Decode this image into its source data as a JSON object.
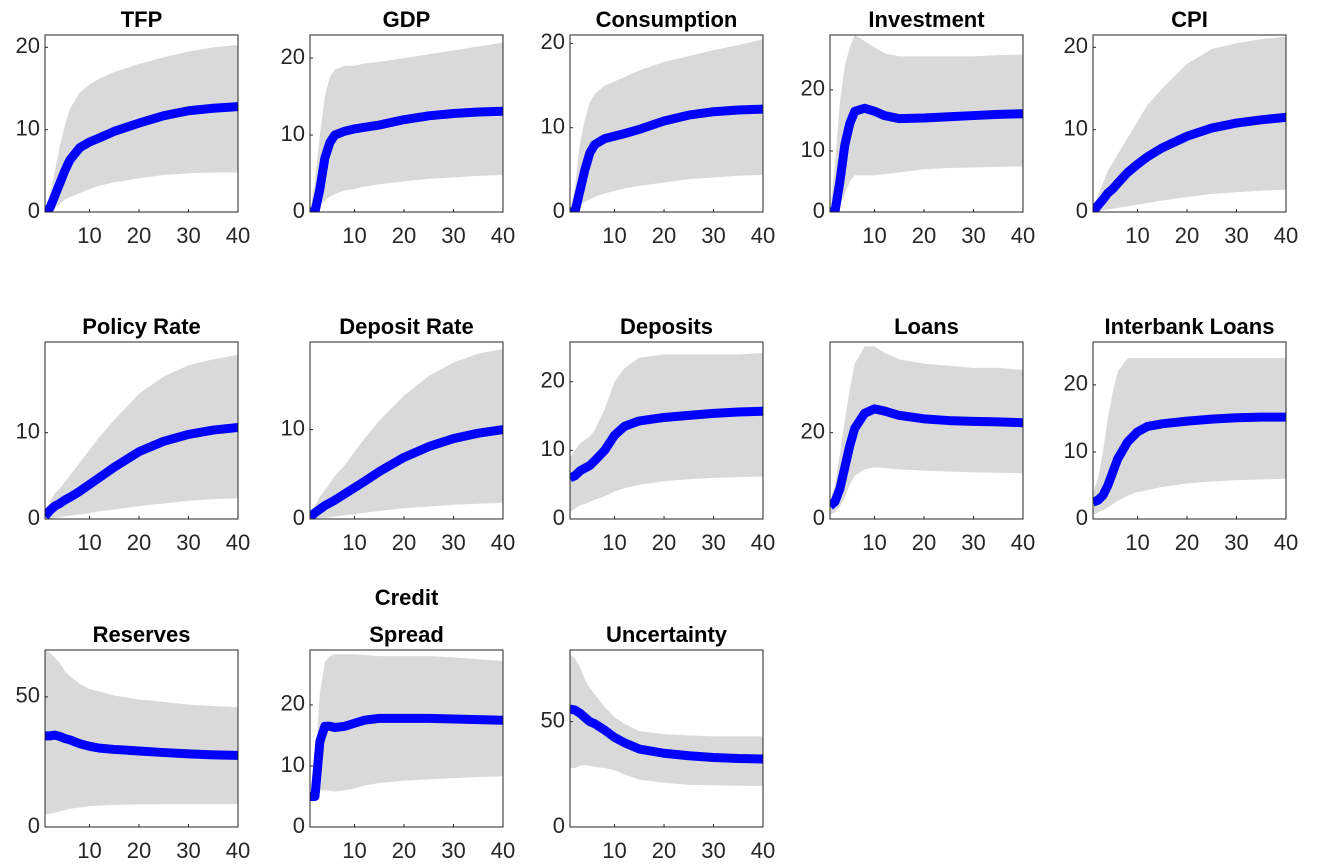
{
  "chart_data": [
    {
      "type": "line",
      "title": "TFP",
      "x": [
        1,
        2,
        3,
        4,
        5,
        6,
        8,
        10,
        12,
        15,
        20,
        25,
        30,
        35,
        40
      ],
      "values": [
        0,
        0.5,
        2,
        3.5,
        5,
        6.3,
        7.8,
        8.5,
        9,
        9.8,
        10.8,
        11.7,
        12.3,
        12.6,
        12.8
      ],
      "band": {
        "upper": [
          0,
          2,
          5,
          8,
          10.5,
          12.5,
          14.5,
          15.5,
          16.2,
          17,
          18,
          18.8,
          19.5,
          20,
          20.3
        ],
        "lower": [
          0,
          0.2,
          0.5,
          1,
          1.5,
          1.8,
          2.3,
          2.8,
          3.2,
          3.6,
          4.1,
          4.5,
          4.7,
          4.8,
          4.8
        ],
        "color": "#d9d9d9"
      },
      "color": "#0000ff",
      "xlim": [
        1,
        40
      ],
      "ylim": [
        0,
        21.5
      ],
      "xticks": [
        10,
        20,
        30,
        40
      ],
      "yticks": [
        0,
        10,
        20
      ]
    },
    {
      "type": "line",
      "title": "GDP",
      "x": [
        1,
        2,
        3,
        4,
        5,
        6,
        8,
        10,
        12,
        15,
        20,
        25,
        30,
        35,
        40
      ],
      "values": [
        0,
        0,
        3,
        7,
        9,
        10,
        10.5,
        10.8,
        11,
        11.3,
        12,
        12.5,
        12.8,
        13,
        13.1
      ],
      "band": {
        "upper": [
          0,
          4,
          10,
          15,
          17.5,
          18.5,
          19,
          19,
          19.3,
          19.5,
          20,
          20.5,
          21,
          21.5,
          22
        ],
        "lower": [
          0,
          0.5,
          1,
          1.5,
          2,
          2.3,
          2.8,
          3,
          3.3,
          3.6,
          4,
          4.3,
          4.5,
          4.7,
          4.8
        ],
        "color": "#d9d9d9"
      },
      "color": "#0000ff",
      "xlim": [
        1,
        40
      ],
      "ylim": [
        0,
        23
      ],
      "xticks": [
        10,
        20,
        30,
        40
      ],
      "yticks": [
        0,
        10,
        20
      ]
    },
    {
      "type": "line",
      "title": "Consumption",
      "x": [
        1,
        2,
        3,
        4,
        5,
        6,
        8,
        10,
        12,
        15,
        20,
        25,
        30,
        35,
        40
      ],
      "values": [
        0,
        0,
        2.5,
        5,
        7,
        8,
        8.7,
        9,
        9.3,
        9.8,
        10.8,
        11.5,
        11.9,
        12.1,
        12.2
      ],
      "band": {
        "upper": [
          0,
          3,
          8,
          11,
          13,
          14,
          15,
          15.5,
          16,
          16.8,
          17.8,
          18.5,
          19.2,
          19.8,
          20.5
        ],
        "lower": [
          0,
          0.3,
          0.8,
          1.2,
          1.5,
          1.8,
          2.2,
          2.5,
          2.8,
          3.1,
          3.5,
          3.9,
          4.1,
          4.3,
          4.4
        ],
        "color": "#d9d9d9"
      },
      "color": "#0000ff",
      "xlim": [
        1,
        40
      ],
      "ylim": [
        0,
        21
      ],
      "xticks": [
        10,
        20,
        30,
        40
      ],
      "yticks": [
        0,
        10,
        20
      ]
    },
    {
      "type": "line",
      "title": "Investment",
      "x": [
        1,
        2,
        3,
        4,
        5,
        6,
        8,
        10,
        12,
        15,
        20,
        25,
        30,
        35,
        40
      ],
      "values": [
        0,
        0,
        5,
        11,
        14.5,
        16.5,
        17,
        16.5,
        15.8,
        15.3,
        15.4,
        15.6,
        15.8,
        16,
        16.1
      ],
      "band": {
        "upper": [
          0,
          8,
          18,
          24,
          27,
          29,
          28,
          27,
          26,
          25.5,
          25.5,
          25.5,
          25.5,
          25.7,
          25.8
        ],
        "lower": [
          0,
          0,
          1,
          3,
          5,
          6,
          6,
          6,
          6.2,
          6.5,
          7,
          7.2,
          7.3,
          7.4,
          7.5
        ],
        "color": "#d9d9d9"
      },
      "color": "#0000ff",
      "xlim": [
        1,
        40
      ],
      "ylim": [
        0,
        29
      ],
      "xticks": [
        10,
        20,
        30,
        40
      ],
      "yticks": [
        0,
        10,
        20
      ]
    },
    {
      "type": "line",
      "title": "CPI",
      "x": [
        1,
        2,
        3,
        4,
        5,
        6,
        8,
        10,
        12,
        15,
        20,
        25,
        30,
        35,
        40
      ],
      "values": [
        0,
        0.8,
        1.5,
        2.3,
        2.8,
        3.5,
        4.8,
        5.8,
        6.7,
        7.8,
        9.2,
        10.2,
        10.8,
        11.2,
        11.5
      ],
      "band": {
        "upper": [
          0,
          2,
          3.5,
          5,
          6,
          7,
          9,
          11,
          13,
          15,
          18,
          19.8,
          20.5,
          21,
          21.3
        ],
        "lower": [
          0,
          0,
          0.2,
          0.3,
          0.4,
          0.5,
          0.7,
          0.9,
          1.1,
          1.4,
          1.8,
          2.2,
          2.4,
          2.6,
          2.7
        ],
        "color": "#d9d9d9"
      },
      "color": "#0000ff",
      "xlim": [
        1,
        40
      ],
      "ylim": [
        0,
        21.5
      ],
      "xticks": [
        10,
        20,
        30,
        40
      ],
      "yticks": [
        0,
        10,
        20
      ]
    },
    {
      "type": "line",
      "title": "Policy Rate",
      "x": [
        1,
        2,
        3,
        4,
        5,
        6,
        8,
        10,
        12,
        15,
        20,
        25,
        30,
        35,
        40
      ],
      "values": [
        0.3,
        1,
        1.5,
        1.8,
        2.2,
        2.5,
        3.2,
        4,
        4.8,
        6,
        7.8,
        9,
        9.8,
        10.3,
        10.6
      ],
      "band": {
        "upper": [
          0.5,
          2,
          3,
          3.5,
          4.3,
          5,
          6.5,
          8,
          9.5,
          11.5,
          14.5,
          16.5,
          17.8,
          18.5,
          19
        ],
        "lower": [
          0,
          0,
          0.1,
          0.2,
          0.3,
          0.4,
          0.5,
          0.7,
          0.9,
          1.1,
          1.5,
          1.8,
          2.1,
          2.3,
          2.4
        ],
        "color": "#d9d9d9"
      },
      "color": "#0000ff",
      "xlim": [
        1,
        40
      ],
      "ylim": [
        0,
        20.5
      ],
      "xticks": [
        10,
        20,
        30,
        40
      ],
      "yticks": [
        0,
        10
      ]
    },
    {
      "type": "line",
      "title": "Deposit Rate",
      "x": [
        1,
        2,
        3,
        4,
        5,
        6,
        8,
        10,
        12,
        15,
        20,
        25,
        30,
        35,
        40
      ],
      "values": [
        0.2,
        0.7,
        1.1,
        1.5,
        1.8,
        2.1,
        2.8,
        3.5,
        4.2,
        5.3,
        6.9,
        8.1,
        9,
        9.6,
        10
      ],
      "band": {
        "upper": [
          0.4,
          1.5,
          2.5,
          3.2,
          4,
          4.8,
          6,
          7.5,
          9,
          11,
          13.8,
          16,
          17.5,
          18.5,
          19
        ],
        "lower": [
          0,
          0,
          0.1,
          0.1,
          0.2,
          0.3,
          0.4,
          0.5,
          0.7,
          0.9,
          1.2,
          1.4,
          1.6,
          1.7,
          1.8
        ],
        "color": "#d9d9d9"
      },
      "color": "#0000ff",
      "xlim": [
        1,
        40
      ],
      "ylim": [
        0,
        19.8
      ],
      "xticks": [
        10,
        20,
        30,
        40
      ],
      "yticks": [
        0,
        10
      ]
    },
    {
      "type": "line",
      "title": "Deposits",
      "x": [
        1,
        2,
        3,
        4,
        5,
        6,
        8,
        10,
        12,
        15,
        20,
        25,
        30,
        35,
        40
      ],
      "values": [
        6,
        6.3,
        7,
        7.4,
        7.8,
        8.5,
        10,
        12.2,
        13.5,
        14.3,
        14.8,
        15.1,
        15.4,
        15.6,
        15.7
      ],
      "band": {
        "upper": [
          9,
          10,
          11,
          11.5,
          12,
          13,
          16,
          20,
          22,
          23.5,
          24,
          24,
          24,
          24,
          24.2
        ],
        "lower": [
          1,
          1.5,
          2,
          2.2,
          2.5,
          2.8,
          3.3,
          4,
          4.5,
          5,
          5.5,
          5.8,
          6,
          6.1,
          6.2
        ],
        "color": "#d9d9d9"
      },
      "color": "#0000ff",
      "xlim": [
        1,
        40
      ],
      "ylim": [
        0,
        25.8
      ],
      "xticks": [
        10,
        20,
        30,
        40
      ],
      "yticks": [
        0,
        10,
        20
      ]
    },
    {
      "type": "line",
      "title": "Loans",
      "x": [
        1,
        2,
        3,
        4,
        5,
        6,
        8,
        10,
        12,
        15,
        20,
        25,
        30,
        35,
        40
      ],
      "values": [
        3,
        4,
        7,
        12,
        17,
        21,
        24.5,
        25.5,
        25,
        24,
        23.2,
        22.8,
        22.6,
        22.5,
        22.3
      ],
      "band": {
        "upper": [
          4,
          8,
          15,
          23,
          30,
          36,
          40,
          40,
          38.5,
          37,
          36,
          35.5,
          35,
          35,
          34.5
        ],
        "lower": [
          1,
          1.5,
          3,
          5,
          8,
          10,
          11.5,
          12,
          11.8,
          11.5,
          11.2,
          11,
          10.8,
          10.7,
          10.6
        ],
        "color": "#d9d9d9"
      },
      "color": "#0000ff",
      "xlim": [
        1,
        40
      ],
      "ylim": [
        0,
        41
      ],
      "xticks": [
        10,
        20,
        30,
        40
      ],
      "yticks": [
        0,
        20
      ]
    },
    {
      "type": "line",
      "title": "Interbank Loans",
      "x": [
        1,
        2,
        3,
        4,
        5,
        6,
        8,
        10,
        12,
        15,
        20,
        25,
        30,
        35,
        40
      ],
      "values": [
        2.5,
        2.8,
        3.5,
        5,
        7,
        9,
        11.5,
        13,
        13.8,
        14.2,
        14.6,
        14.9,
        15.1,
        15.2,
        15.2
      ],
      "band": {
        "upper": [
          4,
          6,
          10,
          15,
          19,
          22,
          24,
          24,
          24,
          24,
          24,
          24,
          24,
          24,
          24
        ],
        "lower": [
          0.5,
          1,
          1.3,
          1.7,
          2.2,
          2.7,
          3.5,
          4,
          4.3,
          4.8,
          5.3,
          5.6,
          5.8,
          5.9,
          6
        ],
        "color": "#d9d9d9"
      },
      "color": "#0000ff",
      "xlim": [
        1,
        40
      ],
      "ylim": [
        0,
        26.4
      ],
      "xticks": [
        10,
        20,
        30,
        40
      ],
      "yticks": [
        0,
        10,
        20
      ]
    },
    {
      "type": "line",
      "title": "Reserves",
      "x": [
        1,
        2,
        3,
        4,
        5,
        6,
        8,
        10,
        12,
        15,
        20,
        25,
        30,
        35,
        40
      ],
      "values": [
        35,
        35,
        35.3,
        34.8,
        34,
        33.5,
        32,
        31,
        30.3,
        29.8,
        29.2,
        28.6,
        28.1,
        27.7,
        27.5
      ],
      "band": {
        "upper": [
          68,
          67,
          65,
          63,
          60,
          58,
          55,
          53,
          52,
          50.5,
          49,
          48,
          47,
          46.5,
          46
        ],
        "lower": [
          5,
          5,
          5.5,
          6,
          6.5,
          7,
          7.5,
          8,
          8.2,
          8.5,
          8.7,
          8.8,
          8.8,
          8.8,
          8.8
        ],
        "color": "#d9d9d9"
      },
      "color": "#0000ff",
      "xlim": [
        1,
        40
      ],
      "ylim": [
        0,
        68
      ],
      "xticks": [
        10,
        20,
        30,
        40
      ],
      "yticks": [
        0,
        50
      ]
    },
    {
      "type": "line",
      "title": [
        "Credit",
        "Spread"
      ],
      "x": [
        1,
        2,
        3,
        4,
        5,
        6,
        8,
        10,
        12,
        15,
        20,
        25,
        30,
        35,
        40
      ],
      "values": [
        5,
        5,
        14,
        16.5,
        16.5,
        16.3,
        16.5,
        17,
        17.5,
        17.8,
        17.8,
        17.8,
        17.7,
        17.6,
        17.5
      ],
      "band": {
        "upper": [
          5,
          10,
          22,
          27,
          28,
          28.3,
          28.3,
          28.3,
          28.2,
          28,
          28,
          28,
          27.8,
          27.5,
          27.2
        ],
        "lower": [
          5,
          5,
          6,
          6,
          6,
          5.8,
          6,
          6.3,
          6.8,
          7.2,
          7.6,
          7.8,
          8,
          8.2,
          8.3
        ],
        "color": "#d9d9d9"
      },
      "color": "#0000ff",
      "xlim": [
        1,
        40
      ],
      "ylim": [
        0,
        29
      ],
      "xticks": [
        10,
        20,
        30,
        40
      ],
      "yticks": [
        0,
        10,
        20
      ]
    },
    {
      "type": "line",
      "title": "Uncertainty",
      "x": [
        1,
        2,
        3,
        4,
        5,
        6,
        8,
        10,
        12,
        15,
        20,
        25,
        30,
        35,
        40
      ],
      "values": [
        56,
        55.5,
        54,
        52,
        50,
        49,
        46,
        42.5,
        40,
        37,
        35,
        33.8,
        33,
        32.5,
        32.3
      ],
      "band": {
        "upper": [
          82,
          80,
          76,
          70,
          66,
          63,
          57,
          52,
          49,
          45.5,
          44,
          43.5,
          43,
          43,
          43
        ],
        "lower": [
          28,
          28,
          29,
          29.5,
          29,
          28.5,
          28,
          27,
          25,
          22.5,
          21,
          20,
          19.8,
          19.6,
          19.5
        ],
        "color": "#d9d9d9"
      },
      "color": "#0000ff",
      "xlim": [
        1,
        40
      ],
      "ylim": [
        0,
        84
      ],
      "xticks": [
        10,
        20,
        30,
        40
      ],
      "yticks": [
        0,
        50
      ]
    }
  ]
}
